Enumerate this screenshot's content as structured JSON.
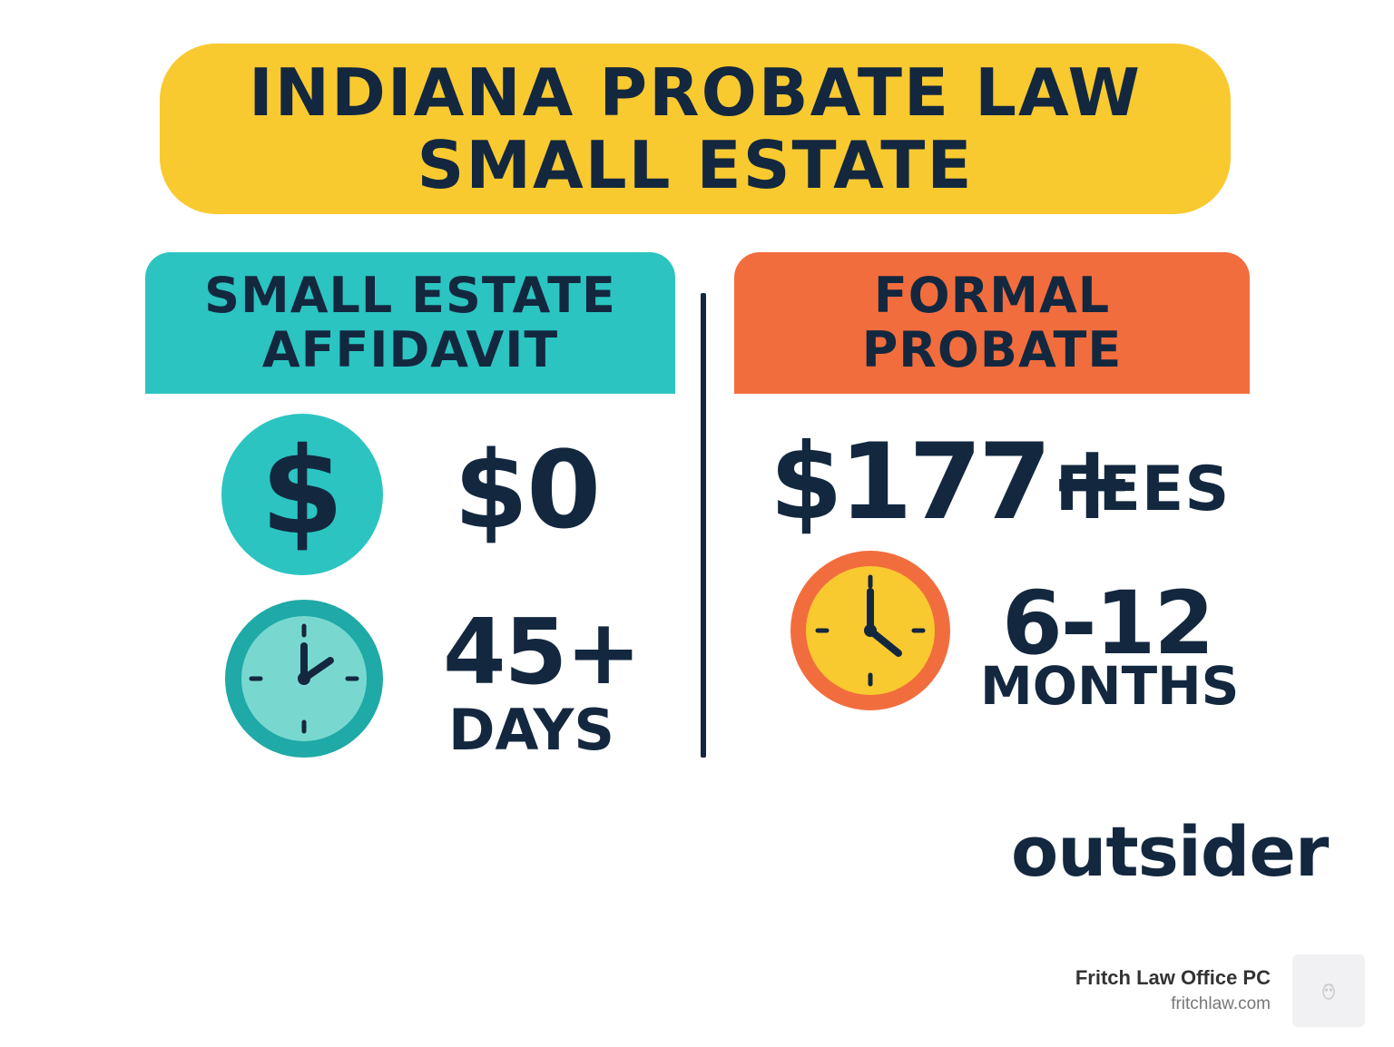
{
  "title": {
    "line1": "INDIANA PROBATE LAW",
    "line2": "SMALL ESTATE"
  },
  "left_column": {
    "heading_line1": "SMALL ESTATE",
    "heading_line2": "AFFIDAVIT",
    "cost_icon": "dollar-sign-icon",
    "cost": "$0",
    "time_icon": "clock-icon",
    "time_value": "45+",
    "time_unit": "DAYS",
    "color": "#2bc4c1"
  },
  "right_column": {
    "heading_line1": "FORMAL",
    "heading_line2": "PROBATE",
    "cost": "$177+",
    "cost_unit": "FEES",
    "time_icon": "clock-icon",
    "time_value": "6-12",
    "time_unit": "MONTHS",
    "color": "#f26d3d"
  },
  "brand": "outsider",
  "credit": {
    "name": "Fritch Law Office PC",
    "url": "fritchlaw.com"
  },
  "colors": {
    "banner": "#f9c930",
    "ink": "#13283f"
  }
}
